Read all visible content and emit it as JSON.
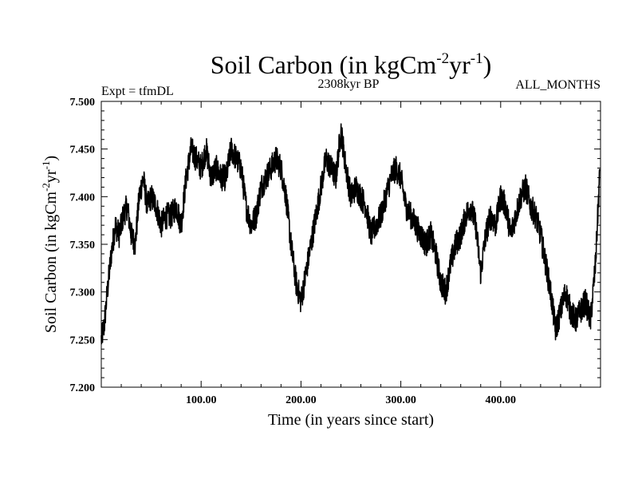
{
  "chart_data": {
    "type": "line",
    "title": {
      "main": "Soil Carbon (in kgCm",
      "sup1": "-2",
      "mid": "yr",
      "sup2": "-1",
      "end": ")"
    },
    "subtitle": "2308kyr BP",
    "left_label": "Expt = tfmDL",
    "right_label": "ALL_MONTHS",
    "xlabel": "Time (in years since start)",
    "ylabel": {
      "main": "Soil Carbon (in kgCm",
      "sup1": "-2",
      "mid": "yr",
      "sup2": "-1",
      "end": ")"
    },
    "xlim": [
      0,
      500
    ],
    "ylim": [
      7.2,
      7.5
    ],
    "xticks": [
      100,
      200,
      300,
      400
    ],
    "xtick_labels": [
      "100.00",
      "200.00",
      "300.00",
      "400.00"
    ],
    "yticks": [
      7.2,
      7.25,
      7.3,
      7.35,
      7.4,
      7.45,
      7.5
    ],
    "ytick_labels": [
      "7.200",
      "7.250",
      "7.300",
      "7.350",
      "7.400",
      "7.450",
      "7.500"
    ],
    "series": [
      {
        "name": "Soil Carbon",
        "color": "#000000",
        "x": [
          0,
          3,
          6,
          10,
          14,
          18,
          22,
          26,
          30,
          34,
          38,
          42,
          46,
          50,
          55,
          60,
          65,
          70,
          75,
          80,
          85,
          90,
          95,
          100,
          105,
          110,
          115,
          120,
          125,
          130,
          135,
          140,
          145,
          150,
          155,
          160,
          165,
          170,
          175,
          180,
          185,
          190,
          195,
          200,
          205,
          210,
          215,
          220,
          225,
          230,
          235,
          240,
          245,
          250,
          255,
          260,
          265,
          270,
          275,
          280,
          285,
          290,
          295,
          300,
          305,
          310,
          315,
          320,
          325,
          330,
          335,
          340,
          345,
          350,
          355,
          360,
          365,
          370,
          375,
          380,
          385,
          390,
          395,
          400,
          405,
          410,
          415,
          420,
          425,
          430,
          435,
          440,
          445,
          450,
          455,
          460,
          465,
          470,
          475,
          480,
          485,
          490,
          495,
          499
        ],
        "y": [
          7.25,
          7.265,
          7.3,
          7.34,
          7.37,
          7.36,
          7.38,
          7.39,
          7.36,
          7.35,
          7.4,
          7.42,
          7.39,
          7.4,
          7.39,
          7.37,
          7.38,
          7.38,
          7.39,
          7.37,
          7.42,
          7.45,
          7.44,
          7.43,
          7.45,
          7.42,
          7.43,
          7.42,
          7.42,
          7.45,
          7.44,
          7.43,
          7.39,
          7.37,
          7.38,
          7.41,
          7.42,
          7.43,
          7.44,
          7.43,
          7.4,
          7.35,
          7.31,
          7.29,
          7.32,
          7.35,
          7.38,
          7.41,
          7.44,
          7.43,
          7.42,
          7.47,
          7.43,
          7.4,
          7.41,
          7.4,
          7.39,
          7.36,
          7.37,
          7.38,
          7.4,
          7.42,
          7.43,
          7.42,
          7.39,
          7.38,
          7.37,
          7.36,
          7.35,
          7.36,
          7.34,
          7.31,
          7.3,
          7.33,
          7.35,
          7.36,
          7.38,
          7.39,
          7.37,
          7.32,
          7.36,
          7.38,
          7.37,
          7.4,
          7.39,
          7.36,
          7.38,
          7.4,
          7.41,
          7.39,
          7.38,
          7.36,
          7.33,
          7.3,
          7.26,
          7.28,
          7.3,
          7.28,
          7.27,
          7.28,
          7.29,
          7.27,
          7.33,
          7.42
        ]
      }
    ]
  }
}
